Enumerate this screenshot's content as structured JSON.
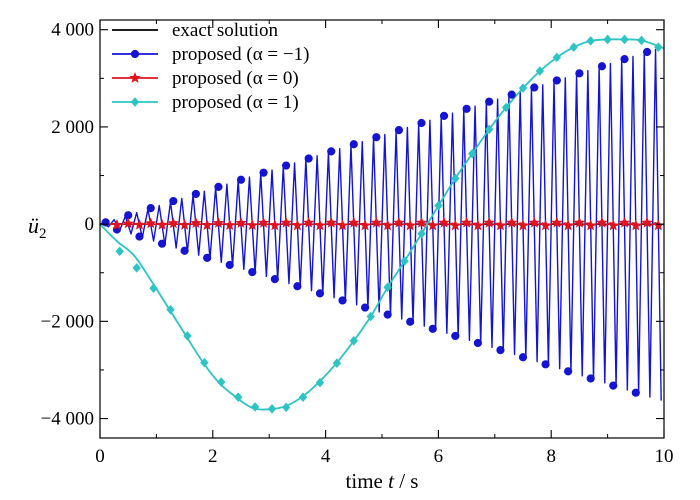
{
  "chart_data": {
    "type": "line",
    "title": "",
    "xlabel_prefix": "time ",
    "xlabel_var": "t",
    "xlabel_suffix": " / s",
    "ylabel_var": "ü",
    "ylabel_sub": "2",
    "xlim": [
      0,
      10
    ],
    "ylim": [
      -4400,
      4200
    ],
    "x_ticks": [
      0,
      2,
      4,
      6,
      8,
      10
    ],
    "x_tick_labels": [
      "0",
      "2",
      "4",
      "6",
      "8",
      "10"
    ],
    "y_ticks": [
      -4000,
      -2000,
      0,
      2000,
      4000
    ],
    "y_tick_labels": [
      "−4 000",
      "−2 000",
      "0",
      "2 000",
      "4 000"
    ],
    "grid": false,
    "legend_position": "top-left",
    "legend": [
      {
        "label": "exact solution",
        "color": "#000000",
        "marker": "none"
      },
      {
        "label": "proposed (α = −1)",
        "color": "#1414d2",
        "marker": "circle"
      },
      {
        "label": "proposed (α = 0)",
        "color": "#e0141e",
        "marker": "star"
      },
      {
        "label": "proposed (α = 1)",
        "color": "#2ec4c4",
        "marker": "diamond"
      }
    ],
    "series": [
      {
        "name": "exact solution",
        "color": "#000000",
        "description_points": {
          "x": [
            0,
            10
          ],
          "y": [
            0,
            0
          ]
        }
      },
      {
        "name": "proposed (α = −1)",
        "color": "#1414d2",
        "oscillation_period": 0.2,
        "envelope": {
          "x": [
            0,
            10
          ],
          "amplitude": [
            0,
            3650
          ]
        },
        "marker_points": {
          "x": [
            0.1,
            0.3,
            0.5,
            0.7,
            0.9,
            1.1,
            1.3,
            1.5,
            1.7,
            1.9,
            2.1,
            2.3,
            2.5,
            2.7,
            2.9,
            3.1,
            3.3,
            3.5,
            3.7,
            3.9,
            4.1,
            4.3,
            4.5,
            4.7,
            4.9,
            5.1,
            5.3,
            5.5,
            5.7,
            5.9,
            6.1,
            6.3,
            6.5,
            6.7,
            6.9,
            7.1,
            7.3,
            7.5,
            7.7,
            7.9,
            8.1,
            8.3,
            8.5,
            8.7,
            8.9,
            9.1,
            9.3,
            9.5,
            9.7
          ],
          "y": [
            37,
            -110,
            183,
            -256,
            329,
            -402,
            475,
            -548,
            621,
            -694,
            767,
            -840,
            913,
            -986,
            1059,
            -1132,
            1205,
            -1278,
            1351,
            -1424,
            1497,
            -1570,
            1643,
            -1716,
            1789,
            -1862,
            1935,
            -2008,
            2081,
            -2154,
            2227,
            -2300,
            2373,
            -2446,
            2519,
            -2592,
            2665,
            -2738,
            2811,
            -2884,
            2957,
            -3030,
            3103,
            -3176,
            3249,
            -3322,
            3395,
            -3468,
            3541
          ]
        }
      },
      {
        "name": "proposed (α = 0)",
        "color": "#e0141e",
        "oscillation_period": 0.2,
        "envelope": {
          "x": [
            0,
            10
          ],
          "amplitude": [
            0,
            30
          ]
        },
        "marker_points": {
          "x": [
            0.3,
            0.5,
            0.7,
            0.9,
            1.1,
            1.3,
            1.5,
            1.7,
            1.9,
            2.1,
            2.3,
            2.5,
            2.7,
            2.9,
            3.1,
            3.3,
            3.5,
            3.7,
            3.9,
            4.1,
            4.3,
            4.5,
            4.7,
            4.9,
            5.1,
            5.3,
            5.5,
            5.7,
            5.9,
            6.1,
            6.3,
            6.5,
            6.7,
            6.9,
            7.1,
            7.3,
            7.5,
            7.7,
            7.9,
            8.1,
            8.3,
            8.5,
            8.7,
            8.9,
            9.1,
            9.3,
            9.5,
            9.7,
            9.9
          ],
          "y": [
            -18,
            12,
            -14,
            16,
            -16,
            18,
            -18,
            20,
            -20,
            22,
            -22,
            24,
            -24,
            26,
            -26,
            28,
            -28,
            28,
            -28,
            28,
            -28,
            28,
            -28,
            28,
            -28,
            28,
            -28,
            28,
            -28,
            28,
            -28,
            28,
            -28,
            28,
            -28,
            28,
            -28,
            28,
            -28,
            28,
            -28,
            28,
            -28,
            28,
            -28,
            28,
            -28,
            28,
            -28
          ]
        }
      },
      {
        "name": "proposed (α = 1)",
        "color": "#2ec4c4",
        "curve": {
          "x": [
            0,
            0.3,
            0.6,
            0.9,
            1.2,
            1.5,
            1.8,
            2.1,
            2.4,
            2.7,
            3.0,
            3.3,
            3.6,
            3.9,
            4.2,
            4.5,
            4.8,
            5.1,
            5.4,
            5.7,
            6.0,
            6.3,
            6.6,
            6.9,
            7.2,
            7.5,
            7.8,
            8.1,
            8.4,
            8.7,
            9.0,
            9.3,
            9.6,
            10.0
          ],
          "y": [
            0,
            -350,
            -640,
            -1150,
            -1700,
            -2250,
            -2800,
            -3250,
            -3550,
            -3780,
            -3810,
            -3740,
            -3540,
            -3230,
            -2850,
            -2400,
            -1900,
            -1300,
            -760,
            -200,
            380,
            940,
            1450,
            1950,
            2400,
            2800,
            3150,
            3430,
            3640,
            3770,
            3800,
            3800,
            3780,
            3620
          ]
        },
        "marker_points": {
          "x": [
            0.35,
            0.65,
            0.95,
            1.25,
            1.55,
            1.85,
            2.15,
            2.45,
            2.75,
            3.05,
            3.3,
            3.6,
            3.9,
            4.2,
            4.5,
            4.8,
            5.1,
            5.4,
            5.7,
            6.0,
            6.3,
            6.6,
            6.9,
            7.2,
            7.5,
            7.8,
            8.1,
            8.4,
            8.7,
            9.0,
            9.3,
            9.6,
            9.9
          ],
          "y": [
            -560,
            -900,
            -1320,
            -1760,
            -2300,
            -2850,
            -3250,
            -3560,
            -3760,
            -3800,
            -3770,
            -3560,
            -3260,
            -2860,
            -2400,
            -1900,
            -1300,
            -760,
            -200,
            380,
            940,
            1450,
            1950,
            2400,
            2800,
            3150,
            3430,
            3640,
            3770,
            3800,
            3800,
            3780,
            3640
          ]
        }
      }
    ]
  }
}
